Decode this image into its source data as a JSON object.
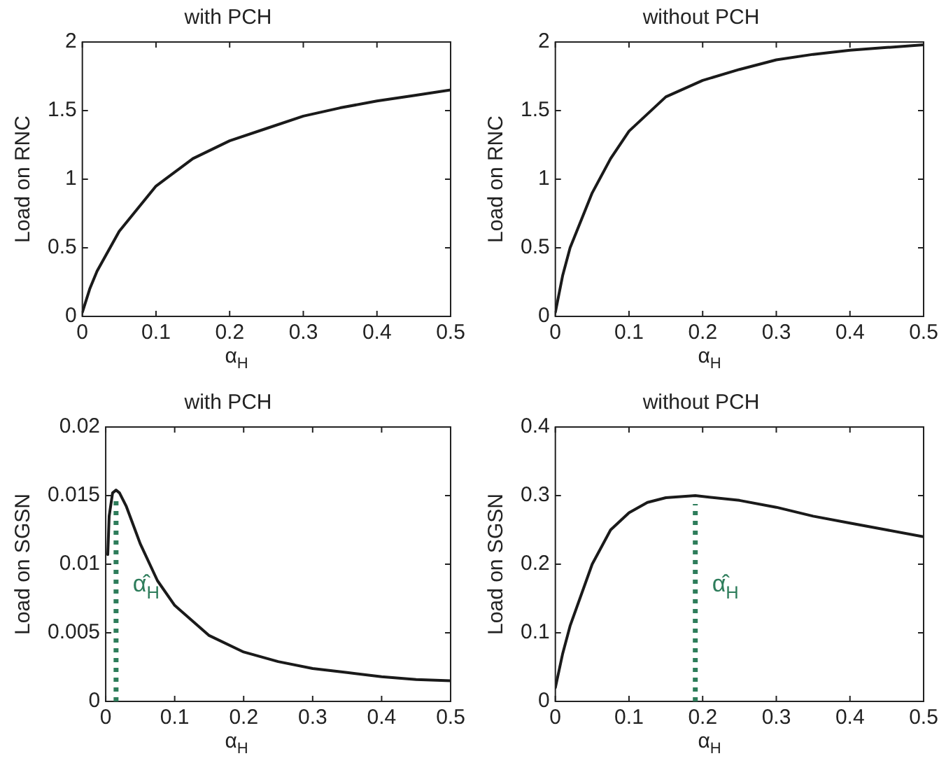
{
  "chart_data": [
    {
      "type": "line",
      "title": "with PCH",
      "xlabel": "α$_{H}$",
      "ylabel": "Load on RNC",
      "xlim": [
        0,
        0.5
      ],
      "xticks": [
        0,
        0.1,
        0.2,
        0.3,
        0.4,
        0.5
      ],
      "ylim": [
        0,
        2
      ],
      "yticks": [
        0,
        0.5,
        1,
        1.5,
        2
      ],
      "marker": "none",
      "line_style": "solid",
      "series": [
        {
          "color": "#1a1a1a",
          "x": [
            0,
            0.01,
            0.02,
            0.05,
            0.1,
            0.15,
            0.2,
            0.25,
            0.3,
            0.35,
            0.4,
            0.45,
            0.5
          ],
          "values": [
            0.03,
            0.2,
            0.33,
            0.62,
            0.95,
            1.15,
            1.28,
            1.37,
            1.46,
            1.52,
            1.57,
            1.61,
            1.65
          ]
        }
      ]
    },
    {
      "type": "line",
      "title": "without PCH",
      "xlabel": "α$_{H}$",
      "ylabel": "Load on RNC",
      "xlim": [
        0,
        0.5
      ],
      "xticks": [
        0,
        0.1,
        0.2,
        0.3,
        0.4,
        0.5
      ],
      "ylim": [
        0,
        2
      ],
      "yticks": [
        0,
        0.5,
        1,
        1.5,
        2
      ],
      "marker": "none",
      "line_style": "solid",
      "series": [
        {
          "color": "#1a1a1a",
          "x": [
            0,
            0.01,
            0.02,
            0.05,
            0.075,
            0.1,
            0.15,
            0.2,
            0.25,
            0.3,
            0.35,
            0.4,
            0.45,
            0.5
          ],
          "values": [
            0.03,
            0.3,
            0.5,
            0.9,
            1.15,
            1.35,
            1.6,
            1.72,
            1.8,
            1.87,
            1.91,
            1.94,
            1.96,
            1.98
          ]
        }
      ]
    },
    {
      "type": "line",
      "title": "with PCH",
      "xlabel": "α$_{H}$",
      "ylabel": "Load on SGSN",
      "xlim": [
        0,
        0.5
      ],
      "xticks": [
        0,
        0.1,
        0.2,
        0.3,
        0.4,
        0.5
      ],
      "ylim": [
        0,
        0.02
      ],
      "yticks": [
        0,
        0.005,
        0.01,
        0.015,
        0.02
      ],
      "marker": "none",
      "line_style": "solid",
      "series": [
        {
          "color": "#1a1a1a",
          "x": [
            0.003,
            0.005,
            0.01,
            0.015,
            0.02,
            0.03,
            0.05,
            0.075,
            0.1,
            0.15,
            0.2,
            0.25,
            0.3,
            0.35,
            0.4,
            0.45,
            0.5
          ],
          "values": [
            0.0107,
            0.0135,
            0.0152,
            0.0154,
            0.0152,
            0.0142,
            0.0115,
            0.0088,
            0.007,
            0.0048,
            0.0036,
            0.0029,
            0.0024,
            0.0021,
            0.0018,
            0.0016,
            0.0015
          ]
        }
      ],
      "ref_lines": [
        {
          "axis": "x",
          "value": 0.015,
          "label": "α̂$_{H}$",
          "color": "#2e7d5b",
          "line_style": "dotted"
        }
      ]
    },
    {
      "type": "line",
      "title": "without PCH",
      "xlabel": "α$_{H}$",
      "ylabel": "Load on SGSN",
      "xlim": [
        0,
        0.5
      ],
      "xticks": [
        0,
        0.1,
        0.2,
        0.3,
        0.4,
        0.5
      ],
      "ylim": [
        0,
        0.4
      ],
      "yticks": [
        0,
        0.1,
        0.2,
        0.3,
        0.4
      ],
      "marker": "none",
      "line_style": "solid",
      "series": [
        {
          "color": "#1a1a1a",
          "x": [
            0,
            0.01,
            0.02,
            0.05,
            0.075,
            0.1,
            0.125,
            0.15,
            0.19,
            0.25,
            0.3,
            0.35,
            0.4,
            0.45,
            0.5
          ],
          "values": [
            0.02,
            0.07,
            0.11,
            0.2,
            0.25,
            0.275,
            0.29,
            0.297,
            0.3,
            0.293,
            0.283,
            0.27,
            0.26,
            0.25,
            0.24
          ]
        }
      ],
      "ref_lines": [
        {
          "axis": "x",
          "value": 0.19,
          "label": "α̂$_{H}$",
          "color": "#2e7d5b",
          "line_style": "dotted"
        }
      ]
    }
  ]
}
